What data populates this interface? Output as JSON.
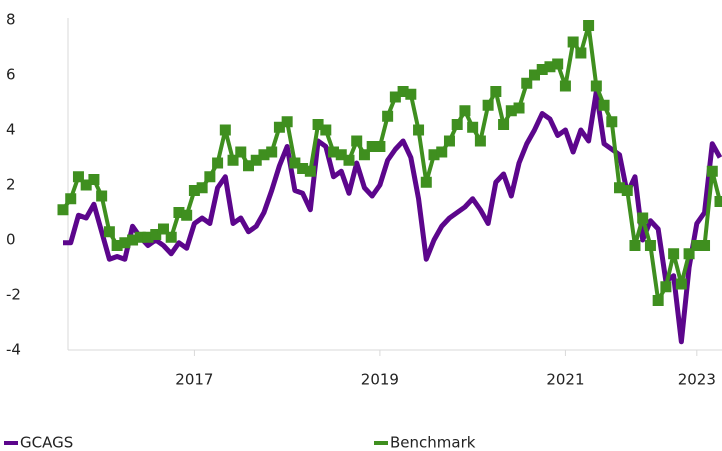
{
  "chart_data": {
    "type": "line",
    "categories": [
      null,
      null,
      null,
      null,
      null,
      null,
      null,
      null,
      null,
      null,
      null,
      null,
      null,
      null,
      null,
      null,
      null,
      "2017",
      null,
      null,
      null,
      null,
      null,
      null,
      null,
      null,
      null,
      null,
      null,
      null,
      null,
      null,
      null,
      null,
      null,
      null,
      null,
      null,
      null,
      null,
      null,
      "2019",
      null,
      null,
      null,
      null,
      null,
      null,
      null,
      null,
      null,
      null,
      null,
      null,
      null,
      null,
      null,
      null,
      null,
      null,
      null,
      null,
      null,
      null,
      null,
      "2021",
      null,
      null,
      null,
      null,
      null,
      null,
      null,
      null,
      null,
      null,
      null,
      null,
      null,
      null,
      null,
      null,
      "2023",
      null,
      null,
      null
    ],
    "series": [
      {
        "name": "GCAGS",
        "color": "#5c068c",
        "marker": "none",
        "values": [
          -0.1,
          -0.1,
          0.9,
          0.8,
          1.3,
          0.3,
          -0.7,
          -0.6,
          -0.7,
          0.5,
          0.1,
          -0.2,
          0.0,
          -0.2,
          -0.5,
          -0.1,
          -0.3,
          0.6,
          0.8,
          0.6,
          1.9,
          2.3,
          0.6,
          0.8,
          0.3,
          0.5,
          1.0,
          1.8,
          2.7,
          3.4,
          1.8,
          1.7,
          1.1,
          3.6,
          3.4,
          2.3,
          2.5,
          1.7,
          2.8,
          1.9,
          1.6,
          2.0,
          2.9,
          3.3,
          3.6,
          3.0,
          1.5,
          -0.7,
          0.0,
          0.5,
          0.8,
          1.0,
          1.2,
          1.5,
          1.1,
          0.6,
          2.1,
          2.4,
          1.6,
          2.8,
          3.5,
          4.0,
          4.6,
          4.4,
          3.8,
          4.0,
          3.2,
          4.0,
          3.6,
          5.4,
          3.5,
          3.3,
          3.1,
          1.7,
          2.3,
          0.0,
          0.7,
          0.4,
          -1.5,
          -1.3,
          -3.7,
          -1.0,
          0.6,
          1.0,
          3.5,
          3.0
        ]
      },
      {
        "name": "Benchmark",
        "color": "#3f8f1f",
        "marker": "square",
        "values": [
          1.1,
          1.5,
          2.3,
          2.0,
          2.2,
          1.6,
          0.3,
          -0.2,
          -0.1,
          0.0,
          0.1,
          0.1,
          0.2,
          0.4,
          0.1,
          1.0,
          0.9,
          1.8,
          1.9,
          2.3,
          2.8,
          4.0,
          2.9,
          3.2,
          2.7,
          2.9,
          3.1,
          3.2,
          4.1,
          4.3,
          2.8,
          2.6,
          2.5,
          4.2,
          4.0,
          3.2,
          3.1,
          2.9,
          3.6,
          3.1,
          3.4,
          3.4,
          4.5,
          5.2,
          5.4,
          5.3,
          4.0,
          2.1,
          3.1,
          3.2,
          3.6,
          4.2,
          4.7,
          4.1,
          3.6,
          4.9,
          5.4,
          4.2,
          4.7,
          4.8,
          5.7,
          6.0,
          6.2,
          6.3,
          6.4,
          5.6,
          7.2,
          6.8,
          7.8,
          5.6,
          4.9,
          4.3,
          1.9,
          1.8,
          -0.2,
          0.8,
          -0.2,
          -2.2,
          -1.7,
          -0.5,
          -1.6,
          -0.5,
          -0.2,
          -0.2,
          2.5,
          1.4
        ]
      }
    ],
    "ylim": [
      -4,
      8
    ],
    "yticks": [
      -4,
      -2,
      0,
      2,
      4,
      6,
      8
    ],
    "grid": false,
    "legend": "bottom"
  }
}
